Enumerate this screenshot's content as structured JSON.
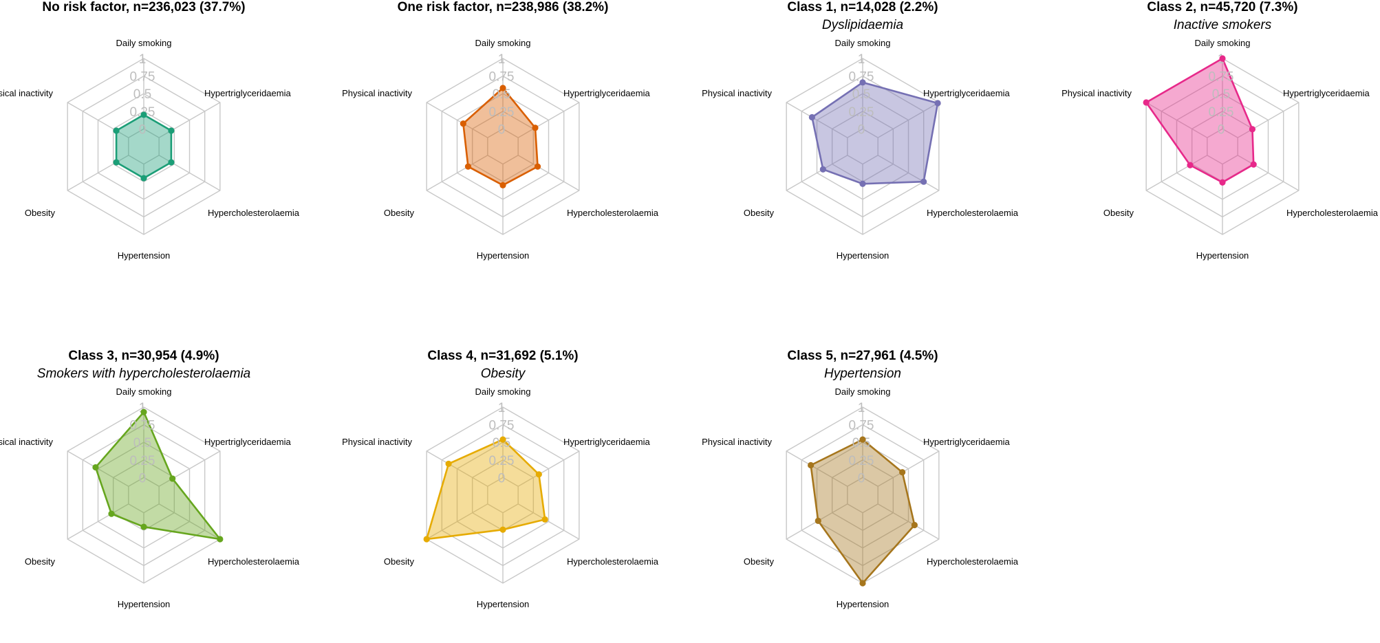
{
  "chart_data": [
    {
      "type": "radar",
      "title": "No risk factor, n=236,023 (37.7%)",
      "subtitle": "",
      "color": "#1b9e77",
      "axes": [
        "Daily smoking",
        "Hypertriglyceridaemia",
        "Hypercholesterolaemia",
        "Hypertension",
        "Obesity",
        "Physical inactivity"
      ],
      "values": [
        0.2,
        0.2,
        0.2,
        0.2,
        0.2,
        0.2
      ],
      "ticks": [
        "0",
        "0.25",
        "0.5",
        "0.75",
        "1"
      ],
      "range": [
        0,
        1
      ]
    },
    {
      "type": "radar",
      "title": "One risk factor, n=238,986 (38.2%)",
      "subtitle": "",
      "color": "#d95f02",
      "axes": [
        "Daily smoking",
        "Hypertriglyceridaemia",
        "Hypercholesterolaemia",
        "Hypertension",
        "Obesity",
        "Physical inactivity"
      ],
      "values": [
        0.58,
        0.28,
        0.32,
        0.3,
        0.32,
        0.4
      ],
      "ticks": [
        "0",
        "0.25",
        "0.5",
        "0.75",
        "1"
      ],
      "range": [
        0,
        1
      ]
    },
    {
      "type": "radar",
      "title": "Class 1, n=14,028 (2.2%)",
      "subtitle": "Dyslipidaemia",
      "color": "#7570b3",
      "axes": [
        "Daily smoking",
        "Hypertriglyceridaemia",
        "Hypercholesterolaemia",
        "Hypertension",
        "Obesity",
        "Physical inactivity"
      ],
      "values": [
        0.66,
        0.98,
        0.75,
        0.28,
        0.4,
        0.58
      ],
      "ticks": [
        "0",
        "0.25",
        "0.5",
        "0.75",
        "1"
      ],
      "range": [
        0,
        1
      ]
    },
    {
      "type": "radar",
      "title": "Class 2, n=45,720 (7.3%)",
      "subtitle": "Inactive smokers",
      "color": "#e7298a",
      "axes": [
        "Daily smoking",
        "Hypertriglyceridaemia",
        "Hypercholesterolaemia",
        "Hypertension",
        "Obesity",
        "Physical inactivity"
      ],
      "values": [
        1.0,
        0.24,
        0.26,
        0.26,
        0.28,
        1.0
      ],
      "ticks": [
        "0",
        "0.25",
        "0.5",
        "0.75",
        "1"
      ],
      "range": [
        0,
        1
      ]
    },
    {
      "type": "radar",
      "title": "Class 3, n=30,954 (4.9%)",
      "subtitle": "Smokers with hypercholesterolaemia",
      "color": "#66a61e",
      "axes": [
        "Daily smoking",
        "Hypertriglyceridaemia",
        "Hypercholesterolaemia",
        "Hypertension",
        "Obesity",
        "Physical inactivity"
      ],
      "values": [
        0.93,
        0.22,
        1.0,
        0.2,
        0.28,
        0.54
      ],
      "ticks": [
        "0",
        "0.25",
        "0.5",
        "0.75",
        "1"
      ],
      "range": [
        0,
        1
      ]
    },
    {
      "type": "radar",
      "title": "Class 4, n=31,692 (5.1%)",
      "subtitle": "Obesity",
      "color": "#e6ab02",
      "axes": [
        "Daily smoking",
        "Hypertriglyceridaemia",
        "Hypercholesterolaemia",
        "Hypertension",
        "Obesity",
        "Physical inactivity"
      ],
      "values": [
        0.54,
        0.34,
        0.44,
        0.24,
        1.0,
        0.64
      ],
      "ticks": [
        "0",
        "0.25",
        "0.5",
        "0.75",
        "1"
      ],
      "range": [
        0,
        1
      ]
    },
    {
      "type": "radar",
      "title": "Class 5, n=27,961 (4.5%)",
      "subtitle": "Hypertension",
      "color": "#a6761d",
      "axes": [
        "Daily smoking",
        "Hypertriglyceridaemia",
        "Hypercholesterolaemia",
        "Hypertension",
        "Obesity",
        "Physical inactivity"
      ],
      "values": [
        0.54,
        0.4,
        0.6,
        1.0,
        0.48,
        0.6
      ],
      "ticks": [
        "0",
        "0.25",
        "0.5",
        "0.75",
        "1"
      ],
      "range": [
        0,
        1
      ]
    }
  ]
}
